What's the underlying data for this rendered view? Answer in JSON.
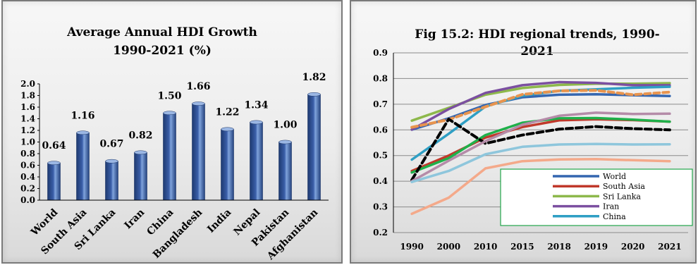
{
  "charts": [
    {
      "type": "bar",
      "title_line1": "Average Annual HDI Growth",
      "title_line2": "1990-2021 (%)",
      "categories": [
        "World",
        "South Asia",
        "Sri Lanka",
        "Iran",
        "China",
        "Bangladesh",
        "India",
        "Nepal",
        "Pakistan",
        "Afghanistan"
      ],
      "values": [
        0.64,
        1.16,
        0.67,
        0.82,
        1.5,
        1.66,
        1.22,
        1.34,
        1.0,
        1.82
      ],
      "value_labels": [
        "0.64",
        "1.16",
        "0.67",
        "0.82",
        "1.50",
        "1.66",
        "1.22",
        "1.34",
        "1.00",
        "1.82"
      ],
      "y_ticks": [
        "0.0",
        "0.2",
        "0.4",
        "0.6",
        "0.8",
        "1.0",
        "1.2",
        "1.4",
        "1.6",
        "1.8",
        "2.0"
      ],
      "ylim": [
        0,
        2.0
      ],
      "bar_color": "#3a5ea8"
    },
    {
      "type": "line",
      "title_line1": "Fig 15.2: HDI regional trends, 1990-",
      "title_line2": "2021",
      "categories": [
        "1990",
        "2000",
        "2010",
        "2015",
        "2018",
        "2019",
        "2020",
        "2021"
      ],
      "y_ticks": [
        "0.2",
        "0.3",
        "0.4",
        "0.5",
        "0.6",
        "0.7",
        "0.8",
        "0.9"
      ],
      "ylim": [
        0.2,
        0.9
      ],
      "grid": true,
      "legend_position": "bottom-right",
      "legend": [
        "World",
        "South Asia",
        "Sri Lanka",
        "Iran",
        "China"
      ],
      "series": [
        {
          "name": "World",
          "color": "#3466b0",
          "dash": "",
          "values": [
            0.601,
            0.645,
            0.697,
            0.727,
            0.737,
            0.739,
            0.735,
            0.732
          ]
        },
        {
          "name": "South Asia",
          "color": "#c0392b",
          "dash": "",
          "values": [
            0.44,
            0.5,
            0.57,
            0.611,
            0.637,
            0.641,
            0.638,
            0.632
          ]
        },
        {
          "name": "Sri Lanka",
          "color": "#8db84b",
          "dash": "",
          "values": [
            0.636,
            0.686,
            0.737,
            0.763,
            0.775,
            0.78,
            0.78,
            0.782
          ]
        },
        {
          "name": "Iran",
          "color": "#7b4fa0",
          "dash": "",
          "values": [
            0.601,
            0.681,
            0.744,
            0.774,
            0.786,
            0.783,
            0.774,
            0.774
          ]
        },
        {
          "name": "China",
          "color": "#2f9fc4",
          "dash": "",
          "values": [
            0.484,
            0.585,
            0.691,
            0.733,
            0.752,
            0.758,
            0.764,
            0.768
          ]
        },
        {
          "color": "#1fb04a",
          "dash": "",
          "values": [
            0.434,
            0.49,
            0.58,
            0.628,
            0.645,
            0.646,
            0.64,
            0.632
          ]
        },
        {
          "color": "#e8944e",
          "dash": "8,5",
          "values": [
            0.61,
            0.64,
            0.69,
            0.738,
            0.752,
            0.754,
            0.737,
            0.747
          ]
        },
        {
          "color": "#000000",
          "dash": "9,5",
          "values": [
            0.405,
            0.642,
            0.547,
            0.58,
            0.603,
            0.613,
            0.605,
            0.6
          ]
        },
        {
          "color": "#b58ba8",
          "dash": "",
          "values": [
            0.4,
            0.48,
            0.556,
            0.62,
            0.655,
            0.667,
            0.662,
            0.663
          ]
        },
        {
          "color": "#8ec6dc",
          "dash": "",
          "values": [
            0.397,
            0.44,
            0.505,
            0.534,
            0.543,
            0.545,
            0.543,
            0.544
          ]
        },
        {
          "color": "#f4a98a",
          "dash": "",
          "values": [
            0.273,
            0.336,
            0.45,
            0.478,
            0.485,
            0.486,
            0.482,
            0.478
          ]
        }
      ]
    }
  ]
}
